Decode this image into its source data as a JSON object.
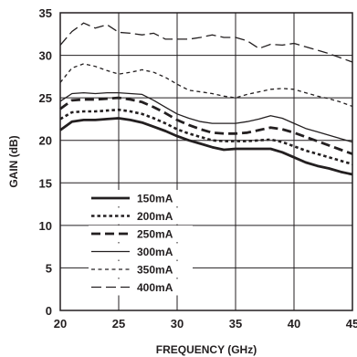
{
  "chart_data": {
    "type": "line",
    "title": "",
    "xlabel": "FREQUENCY (GHz)",
    "ylabel": "GAIN (dB)",
    "xlim": [
      20,
      45
    ],
    "ylim": [
      0,
      35
    ],
    "xticks": [
      20,
      25,
      30,
      35,
      40,
      45
    ],
    "yticks": [
      0,
      5,
      10,
      15,
      20,
      25,
      30,
      35
    ],
    "grid": true,
    "legend_position": "bottom-left",
    "series": [
      {
        "name": "150mA",
        "style": "solid-thick",
        "x": [
          20,
          21,
          22,
          23,
          24,
          25,
          26,
          27,
          28,
          29,
          30,
          31,
          32,
          33,
          34,
          35,
          36,
          37,
          38,
          39,
          40,
          41,
          42,
          43,
          44,
          45
        ],
        "y": [
          21.2,
          22.2,
          22.4,
          22.4,
          22.5,
          22.6,
          22.4,
          22.1,
          21.6,
          21.1,
          20.5,
          20.0,
          19.6,
          19.2,
          18.9,
          19.0,
          19.0,
          19.0,
          19.0,
          18.6,
          18.0,
          17.4,
          17.0,
          16.7,
          16.3,
          16.0
        ]
      },
      {
        "name": "200mA",
        "style": "dotted",
        "x": [
          20,
          21,
          22,
          23,
          24,
          25,
          26,
          27,
          28,
          29,
          30,
          31,
          32,
          33,
          34,
          35,
          36,
          37,
          38,
          39,
          40,
          41,
          42,
          43,
          44,
          45
        ],
        "y": [
          22.5,
          23.3,
          23.4,
          23.4,
          23.5,
          23.6,
          23.4,
          23.1,
          22.6,
          22.0,
          21.3,
          20.8,
          20.4,
          20.0,
          19.9,
          19.9,
          19.9,
          20.0,
          20.1,
          19.8,
          19.3,
          18.8,
          18.4,
          18.0,
          17.6,
          17.2
        ]
      },
      {
        "name": "250mA",
        "style": "dashed-thick",
        "x": [
          20,
          21,
          22,
          23,
          24,
          25,
          26,
          27,
          28,
          29,
          30,
          31,
          32,
          33,
          34,
          35,
          36,
          37,
          38,
          39,
          40,
          41,
          42,
          43,
          44,
          45
        ],
        "y": [
          23.7,
          24.7,
          24.8,
          24.8,
          24.9,
          25.0,
          24.8,
          24.5,
          23.9,
          23.2,
          22.4,
          21.8,
          21.3,
          20.9,
          20.8,
          20.8,
          20.9,
          21.2,
          21.5,
          21.3,
          20.9,
          20.4,
          19.9,
          19.4,
          18.9,
          18.4
        ]
      },
      {
        "name": "300mA",
        "style": "solid-thin",
        "x": [
          20,
          21,
          22,
          23,
          24,
          25,
          26,
          27,
          28,
          29,
          30,
          31,
          32,
          33,
          34,
          35,
          36,
          37,
          38,
          39,
          40,
          41,
          42,
          43,
          44,
          45
        ],
        "y": [
          24.6,
          25.5,
          25.6,
          25.5,
          25.6,
          25.6,
          25.5,
          25.4,
          24.7,
          23.9,
          23.1,
          22.6,
          22.2,
          22.0,
          22.0,
          22.0,
          22.2,
          22.5,
          22.9,
          22.6,
          22.0,
          21.4,
          21.0,
          20.6,
          20.2,
          19.8
        ]
      },
      {
        "name": "350mA",
        "style": "dashed-small",
        "x": [
          20,
          21,
          22,
          23,
          24,
          25,
          26,
          27,
          28,
          29,
          30,
          31,
          32,
          33,
          34,
          35,
          36,
          37,
          38,
          39,
          40,
          41,
          42,
          43,
          44,
          45
        ],
        "y": [
          26.8,
          28.5,
          29.0,
          28.7,
          28.2,
          27.8,
          28.0,
          28.3,
          28.0,
          27.4,
          26.6,
          25.9,
          25.7,
          25.5,
          25.2,
          25.0,
          25.4,
          25.7,
          26.0,
          26.1,
          26.0,
          25.6,
          25.2,
          24.9,
          24.5,
          24.0
        ]
      },
      {
        "name": "400mA",
        "style": "dashed-long",
        "x": [
          20,
          21,
          22,
          23,
          24,
          25,
          26,
          27,
          28,
          29,
          30,
          31,
          32,
          33,
          34,
          35,
          36,
          37,
          38,
          39,
          40,
          41,
          42,
          43,
          44,
          45
        ],
        "y": [
          31.2,
          32.8,
          33.8,
          33.2,
          33.6,
          32.7,
          32.6,
          32.4,
          32.6,
          31.9,
          31.9,
          31.9,
          32.1,
          32.4,
          32.1,
          32.1,
          31.7,
          30.8,
          31.3,
          31.2,
          31.4,
          31.0,
          30.6,
          30.2,
          29.7,
          29.2
        ]
      }
    ]
  }
}
